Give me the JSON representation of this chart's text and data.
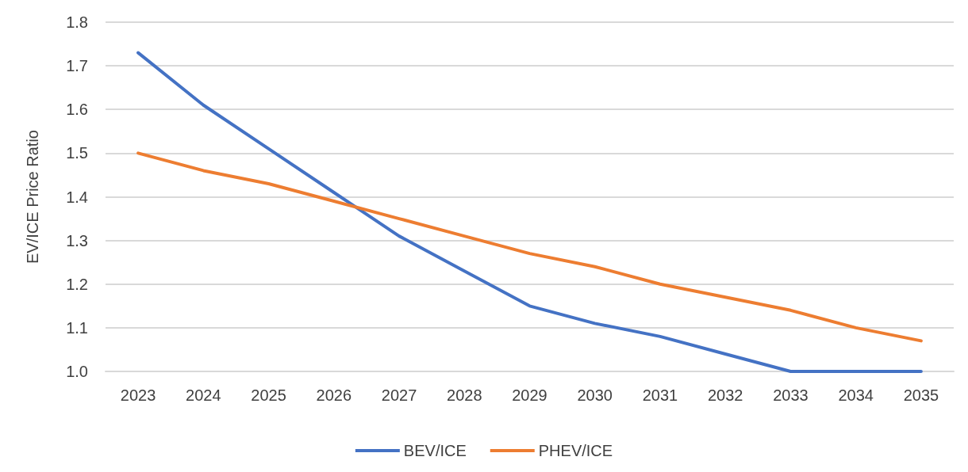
{
  "chart_data": {
    "type": "line",
    "ylabel": "EV/ICE Price Ratio",
    "categories": [
      "2023",
      "2024",
      "2025",
      "2026",
      "2027",
      "2028",
      "2029",
      "2030",
      "2031",
      "2032",
      "2033",
      "2034",
      "2035"
    ],
    "series": [
      {
        "name": "BEV/ICE",
        "color": "#4472c4",
        "values": [
          1.73,
          1.61,
          1.51,
          1.41,
          1.31,
          1.23,
          1.15,
          1.11,
          1.08,
          1.04,
          1.0,
          1.0,
          1.0
        ]
      },
      {
        "name": "PHEV/ICE",
        "color": "#ed7d31",
        "values": [
          1.5,
          1.46,
          1.43,
          1.39,
          1.35,
          1.31,
          1.27,
          1.24,
          1.2,
          1.17,
          1.14,
          1.1,
          1.07
        ]
      }
    ],
    "ylim": [
      1.0,
      1.8
    ],
    "yticks": [
      {
        "value": 1.0,
        "label": "1.0"
      },
      1.1,
      1.2,
      1.3,
      1.4,
      1.5,
      1.6,
      1.7,
      1.8
    ],
    "grid": "y",
    "legend": "bottom",
    "marker": "none",
    "line_style": "solid"
  }
}
